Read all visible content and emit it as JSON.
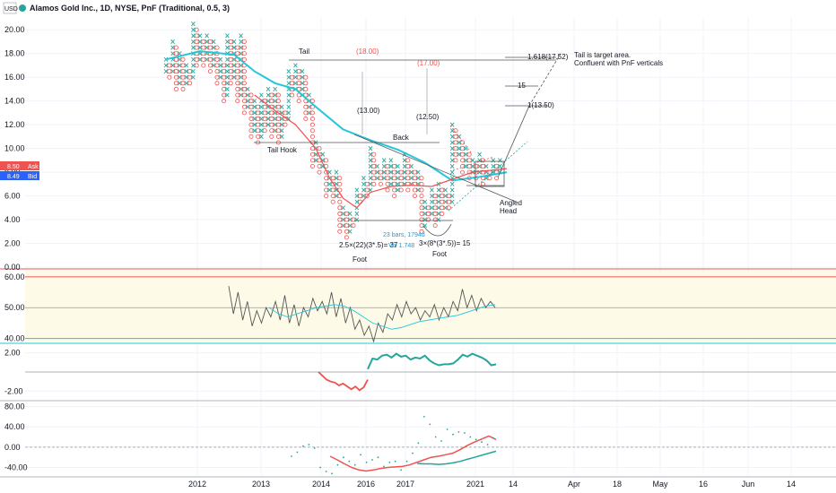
{
  "header": {
    "title": "Alamos Gold Inc., 1D, NYSE, PnF (Traditional, 0.5, 3)",
    "currency": "USD"
  },
  "colors": {
    "x_box": "#26a69a",
    "o_box": "#ef5350",
    "ma_fast": "#ef5350",
    "ma_slow": "#26c6da",
    "grid": "#e0e3eb",
    "ask": "#ef5350",
    "bid": "#2962ff"
  },
  "price_badges": {
    "ask_value": "8.50",
    "ask_label": "Ask",
    "bid_value": "8.49",
    "bid_label": "Bid"
  },
  "x_axis": {
    "labels": [
      "2012",
      "2013",
      "2014",
      "2016",
      "2017",
      "2021",
      "14",
      "Apr",
      "18",
      "May",
      "16",
      "Jun",
      "14"
    ]
  },
  "chart_data": [
    {
      "id": "price",
      "type": "pnf",
      "ylim": [
        0,
        21
      ],
      "y_ticks": [
        "20.00",
        "18.00",
        "16.00",
        "14.00",
        "12.00",
        "10.00",
        "8.00",
        "6.00",
        "4.00",
        "2.00",
        "0.00"
      ],
      "columns": [
        {
          "t": "X",
          "lo": 16.5,
          "hi": 17.5
        },
        {
          "t": "O",
          "lo": 16.0,
          "hi": 17.0
        },
        {
          "t": "X",
          "lo": 16.5,
          "hi": 19.0
        },
        {
          "t": "O",
          "lo": 15.0,
          "hi": 18.5
        },
        {
          "t": "X",
          "lo": 15.5,
          "hi": 18.0
        },
        {
          "t": "O",
          "lo": 15.0,
          "hi": 17.5
        },
        {
          "t": "X",
          "lo": 15.5,
          "hi": 17.0
        },
        {
          "t": "O",
          "lo": 15.5,
          "hi": 16.5
        },
        {
          "t": "X",
          "lo": 16.0,
          "hi": 20.5
        },
        {
          "t": "O",
          "lo": 17.0,
          "hi": 20.0
        },
        {
          "t": "X",
          "lo": 17.5,
          "hi": 19.5
        },
        {
          "t": "O",
          "lo": 17.0,
          "hi": 19.0
        },
        {
          "t": "X",
          "lo": 17.5,
          "hi": 19.5
        },
        {
          "t": "O",
          "lo": 16.5,
          "hi": 19.0
        },
        {
          "t": "X",
          "lo": 17.0,
          "hi": 19.0
        },
        {
          "t": "O",
          "lo": 15.5,
          "hi": 18.5
        },
        {
          "t": "X",
          "lo": 16.0,
          "hi": 17.5
        },
        {
          "t": "O",
          "lo": 14.0,
          "hi": 17.0
        },
        {
          "t": "X",
          "lo": 14.5,
          "hi": 19.5
        },
        {
          "t": "O",
          "lo": 15.5,
          "hi": 19.0
        },
        {
          "t": "X",
          "lo": 16.0,
          "hi": 19.0
        },
        {
          "t": "O",
          "lo": 14.0,
          "hi": 18.5
        },
        {
          "t": "X",
          "lo": 14.5,
          "hi": 19.5
        },
        {
          "t": "O",
          "lo": 13.0,
          "hi": 19.0
        },
        {
          "t": "X",
          "lo": 13.5,
          "hi": 15.0
        },
        {
          "t": "O",
          "lo": 11.0,
          "hi": 14.5
        },
        {
          "t": "X",
          "lo": 11.5,
          "hi": 14.0
        },
        {
          "t": "O",
          "lo": 10.5,
          "hi": 13.5
        },
        {
          "t": "X",
          "lo": 11.0,
          "hi": 14.5
        },
        {
          "t": "O",
          "lo": 11.5,
          "hi": 14.0
        },
        {
          "t": "X",
          "lo": 12.0,
          "hi": 15.0
        },
        {
          "t": "O",
          "lo": 11.0,
          "hi": 14.5
        },
        {
          "t": "X",
          "lo": 11.5,
          "hi": 15.0
        },
        {
          "t": "O",
          "lo": 10.5,
          "hi": 14.5
        },
        {
          "t": "X",
          "lo": 11.0,
          "hi": 13.5
        },
        {
          "t": "O",
          "lo": 12.0,
          "hi": 13.0
        },
        {
          "t": "X",
          "lo": 12.5,
          "hi": 16.5
        },
        {
          "t": "O",
          "lo": 14.5,
          "hi": 16.0
        },
        {
          "t": "X",
          "lo": 15.0,
          "hi": 17.0
        },
        {
          "t": "O",
          "lo": 14.0,
          "hi": 16.5
        },
        {
          "t": "X",
          "lo": 14.5,
          "hi": 16.5
        },
        {
          "t": "O",
          "lo": 12.5,
          "hi": 16.0
        },
        {
          "t": "X",
          "lo": 13.0,
          "hi": 14.5
        },
        {
          "t": "O",
          "lo": 8.5,
          "hi": 14.0
        },
        {
          "t": "X",
          "lo": 9.0,
          "hi": 10.5
        },
        {
          "t": "O",
          "lo": 8.0,
          "hi": 10.0
        },
        {
          "t": "X",
          "lo": 8.5,
          "hi": 9.5
        },
        {
          "t": "O",
          "lo": 6.0,
          "hi": 9.0
        },
        {
          "t": "X",
          "lo": 6.5,
          "hi": 8.0
        },
        {
          "t": "O",
          "lo": 5.5,
          "hi": 7.5
        },
        {
          "t": "X",
          "lo": 6.0,
          "hi": 8.0
        },
        {
          "t": "O",
          "lo": 3.0,
          "hi": 7.5
        },
        {
          "t": "X",
          "lo": 3.5,
          "hi": 5.0
        },
        {
          "t": "O",
          "lo": 2.5,
          "hi": 4.5
        },
        {
          "t": "X",
          "lo": 3.0,
          "hi": 4.5
        },
        {
          "t": "O",
          "lo": 3.5,
          "hi": 4.0
        },
        {
          "t": "X",
          "lo": 4.0,
          "hi": 6.5
        },
        {
          "t": "O",
          "lo": 5.5,
          "hi": 6.0
        },
        {
          "t": "X",
          "lo": 6.0,
          "hi": 7.5
        },
        {
          "t": "O",
          "lo": 6.0,
          "hi": 7.0
        },
        {
          "t": "X",
          "lo": 6.5,
          "hi": 10.0
        },
        {
          "t": "O",
          "lo": 7.0,
          "hi": 9.5
        },
        {
          "t": "X",
          "lo": 7.5,
          "hi": 8.5
        },
        {
          "t": "O",
          "lo": 7.0,
          "hi": 8.0
        },
        {
          "t": "X",
          "lo": 7.5,
          "hi": 9.0
        },
        {
          "t": "O",
          "lo": 6.5,
          "hi": 8.5
        },
        {
          "t": "X",
          "lo": 7.0,
          "hi": 9.0
        },
        {
          "t": "O",
          "lo": 6.0,
          "hi": 8.5
        },
        {
          "t": "X",
          "lo": 6.5,
          "hi": 8.5
        },
        {
          "t": "O",
          "lo": 6.5,
          "hi": 8.0
        },
        {
          "t": "X",
          "lo": 7.0,
          "hi": 9.5
        },
        {
          "t": "O",
          "lo": 6.5,
          "hi": 9.0
        },
        {
          "t": "X",
          "lo": 7.0,
          "hi": 8.5
        },
        {
          "t": "O",
          "lo": 6.0,
          "hi": 8.0
        },
        {
          "t": "X",
          "lo": 6.5,
          "hi": 8.0
        },
        {
          "t": "O",
          "lo": 3.0,
          "hi": 7.5
        },
        {
          "t": "X",
          "lo": 3.5,
          "hi": 5.5
        },
        {
          "t": "O",
          "lo": 4.0,
          "hi": 5.0
        },
        {
          "t": "X",
          "lo": 4.5,
          "hi": 6.5
        },
        {
          "t": "O",
          "lo": 3.5,
          "hi": 6.0
        },
        {
          "t": "X",
          "lo": 4.0,
          "hi": 7.0
        },
        {
          "t": "O",
          "lo": 4.5,
          "hi": 6.5
        },
        {
          "t": "X",
          "lo": 5.0,
          "hi": 6.5
        },
        {
          "t": "O",
          "lo": 5.0,
          "hi": 6.0
        },
        {
          "t": "X",
          "lo": 5.5,
          "hi": 12.0
        },
        {
          "t": "O",
          "lo": 9.0,
          "hi": 11.5
        },
        {
          "t": "X",
          "lo": 9.5,
          "hi": 11.0
        },
        {
          "t": "O",
          "lo": 8.0,
          "hi": 10.5
        },
        {
          "t": "X",
          "lo": 8.5,
          "hi": 10.0
        },
        {
          "t": "O",
          "lo": 7.5,
          "hi": 9.5
        },
        {
          "t": "X",
          "lo": 8.0,
          "hi": 9.0
        },
        {
          "t": "O",
          "lo": 7.5,
          "hi": 8.5
        },
        {
          "t": "X",
          "lo": 8.0,
          "hi": 9.5
        },
        {
          "t": "O",
          "lo": 7.0,
          "hi": 9.0
        },
        {
          "t": "X",
          "lo": 7.5,
          "hi": 8.5
        },
        {
          "t": "O",
          "lo": 7.5,
          "hi": 8.0
        },
        {
          "t": "X",
          "lo": 8.0,
          "hi": 9.0
        },
        {
          "t": "O",
          "lo": 7.5,
          "hi": 8.5
        },
        {
          "t": "X",
          "lo": 8.0,
          "hi": 9.0
        }
      ],
      "ma_slow": [
        [
          0,
          17.5
        ],
        [
          10,
          18.2
        ],
        [
          20,
          17.9
        ],
        [
          26,
          16.5
        ],
        [
          32,
          15.5
        ],
        [
          38,
          15.0
        ],
        [
          44,
          13.5
        ],
        [
          52,
          11.6
        ],
        [
          60,
          10.7
        ],
        [
          68,
          9.9
        ],
        [
          76,
          8.8
        ],
        [
          84,
          7.3
        ],
        [
          92,
          7.6
        ],
        [
          100,
          8.0
        ]
      ],
      "ma_fast": [
        [
          26,
          14.5
        ],
        [
          32,
          13.2
        ],
        [
          38,
          12.0
        ],
        [
          44,
          10.0
        ],
        [
          48,
          7.5
        ],
        [
          52,
          5.8
        ],
        [
          56,
          5.0
        ],
        [
          60,
          6.3
        ],
        [
          66,
          6.8
        ],
        [
          72,
          6.9
        ],
        [
          78,
          6.8
        ],
        [
          84,
          7.4
        ],
        [
          90,
          8.0
        ],
        [
          100,
          8.3
        ]
      ],
      "annotations": [
        {
          "text": "Tail",
          "color": "dark"
        },
        {
          "text": "(18.00)",
          "color": "red"
        },
        {
          "text": "(17.00)",
          "color": "red"
        },
        {
          "text": "(13.00)",
          "color": "dark"
        },
        {
          "text": "(12.50)",
          "color": "dark"
        },
        {
          "text": "Back",
          "color": "dark"
        },
        {
          "text": "Tail Hook",
          "color": "dark"
        },
        {
          "text": "Angled",
          "color": "dark"
        },
        {
          "text": "Head",
          "color": "dark"
        },
        {
          "text": "1.618(17.52)",
          "color": "dark"
        },
        {
          "text": "15",
          "color": "dark"
        },
        {
          "text": "1(13.50)",
          "color": "dark"
        },
        {
          "text": "Tail is target area.",
          "color": "dark"
        },
        {
          "text": "Confluent with PnF verticals",
          "color": "dark"
        },
        {
          "text": "2.5×(22)(3*.5)= 37",
          "color": "dark"
        },
        {
          "text": "23 bars, 1794d",
          "color": "blue"
        },
        {
          "text": "Vol 1.748",
          "color": "blue"
        },
        {
          "text": "3×(8*(3*.5))= 15",
          "color": "dark"
        },
        {
          "text": "Foot",
          "color": "dark"
        },
        {
          "text": "Foot",
          "color": "dark"
        }
      ]
    },
    {
      "id": "oscillator1",
      "type": "line",
      "ylim": [
        39,
        62
      ],
      "y_ticks": [
        "60.00",
        "50.00",
        "40.00"
      ],
      "levels": [
        60,
        50,
        40
      ],
      "values": [
        57,
        48,
        55,
        46,
        52,
        44,
        49,
        45,
        50,
        47,
        52,
        46,
        54,
        45,
        51,
        44,
        50,
        47,
        53,
        49,
        52,
        48,
        55,
        47,
        53,
        45,
        50,
        43,
        46,
        41,
        44,
        39,
        45,
        42,
        48,
        46,
        51,
        47,
        52,
        48,
        50,
        46,
        49,
        47,
        51,
        46,
        50,
        47,
        52,
        49,
        56,
        50,
        54,
        49,
        53,
        50,
        52,
        50
      ],
      "signal": [
        50,
        48,
        47,
        48,
        49,
        50,
        50.5,
        51,
        50.5,
        49,
        47,
        45,
        44,
        43,
        43.5,
        44.5,
        45.5,
        46,
        46.5,
        47,
        47.5,
        48.5,
        49.5,
        50.5,
        51
      ]
    },
    {
      "id": "oscillator2",
      "type": "line",
      "ylim": [
        -2.8,
        2.8
      ],
      "y_ticks": [
        "2.00",
        "-2.00"
      ],
      "red_values": [
        0,
        -0.4,
        -0.8,
        -1.0,
        -1.1,
        -1.4,
        -1.2,
        -1.5,
        -1.8,
        -1.5,
        -1.9,
        -1.6,
        -0.8
      ],
      "teal_values": [
        0.3,
        1.4,
        1.3,
        1.7,
        1.8,
        1.5,
        1.9,
        1.6,
        1.7,
        1.3,
        1.5,
        1.4,
        1.7,
        1.2,
        0.9,
        0.7,
        0.8,
        0.8,
        0.9,
        1.3,
        1.8,
        1.6,
        1.9,
        1.7,
        1.5,
        1.2,
        0.7,
        0.8
      ]
    },
    {
      "id": "oscillator3",
      "type": "line",
      "ylim": [
        -55,
        88
      ],
      "y_ticks": [
        "80.00",
        "40.00",
        "0.00",
        "-40.00"
      ],
      "red_line": [
        -18,
        -25,
        -33,
        -40,
        -45,
        -47,
        -45,
        -42,
        -40,
        -39,
        -38,
        -35,
        -30,
        -25,
        -20,
        -18,
        -15,
        -12,
        -5,
        3,
        10,
        16,
        22,
        15
      ],
      "teal_line": [
        -32,
        -33,
        -33,
        -34,
        -33,
        -31,
        -28,
        -24,
        -20,
        -16,
        -12,
        -8
      ],
      "dots": [
        -18,
        -10,
        2,
        5,
        -2,
        -40,
        -48,
        -52,
        -35,
        -20,
        -28,
        -35,
        -15,
        -30,
        -25,
        -20,
        -38,
        -30,
        -28,
        -45,
        -28,
        -12,
        8,
        60,
        45,
        20,
        12,
        35,
        25,
        30,
        28,
        20,
        15,
        10,
        5,
        18
      ]
    }
  ]
}
